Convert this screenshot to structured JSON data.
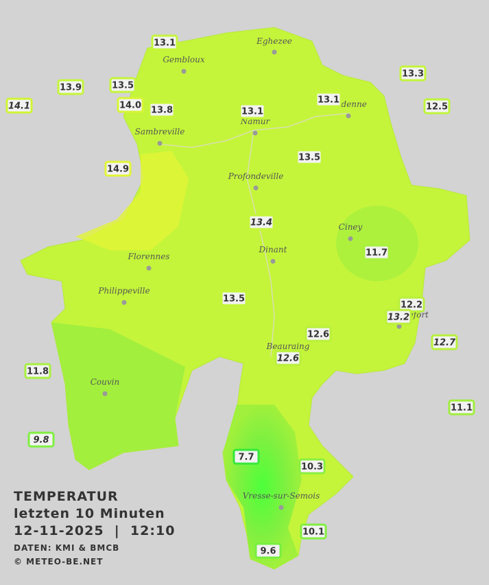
{
  "title": {
    "line1": "TEMPERATUR",
    "line2": "letzten 10 Minuten",
    "line3": "12-11-2025  |  12:10",
    "source": "DATEN: KMI & BMCB",
    "copyright": "© METEO-BE.NET"
  },
  "towns": [
    "Eghezee",
    "Gembloux",
    "Andenne",
    "Namur",
    "Sambreville",
    "Profondeville",
    "Ciney",
    "Florennes",
    "Dinant",
    "Philippeville",
    "Rochefort",
    "Beauraing",
    "Couvin",
    "Vresse-sur-Semois"
  ],
  "stations": [
    {
      "label": "13.1",
      "italic": false
    },
    {
      "label": "13.9",
      "italic": false
    },
    {
      "label": "13.5",
      "italic": false
    },
    {
      "label": "14.1",
      "italic": true
    },
    {
      "label": "14.0",
      "italic": false
    },
    {
      "label": "13.8",
      "italic": false
    },
    {
      "label": "13.1",
      "italic": false
    },
    {
      "label": "13.1",
      "italic": false
    },
    {
      "label": "13.3",
      "italic": false
    },
    {
      "label": "12.5",
      "italic": false
    },
    {
      "label": "14.9",
      "italic": false
    },
    {
      "label": "13.5",
      "italic": false
    },
    {
      "label": "13.4",
      "italic": true
    },
    {
      "label": "11.7",
      "italic": false
    },
    {
      "label": "13.5",
      "italic": false
    },
    {
      "label": "12.2",
      "italic": false
    },
    {
      "label": "13.2",
      "italic": true
    },
    {
      "label": "12.6",
      "italic": false
    },
    {
      "label": "12.6",
      "italic": true
    },
    {
      "label": "12.7",
      "italic": true
    },
    {
      "label": "11.8",
      "italic": false
    },
    {
      "label": "11.1",
      "italic": false
    },
    {
      "label": "9.8",
      "italic": true
    },
    {
      "label": "7.7",
      "italic": false
    },
    {
      "label": "10.3",
      "italic": false
    },
    {
      "label": "10.1",
      "italic": false
    },
    {
      "label": "9.6",
      "italic": false
    }
  ]
}
